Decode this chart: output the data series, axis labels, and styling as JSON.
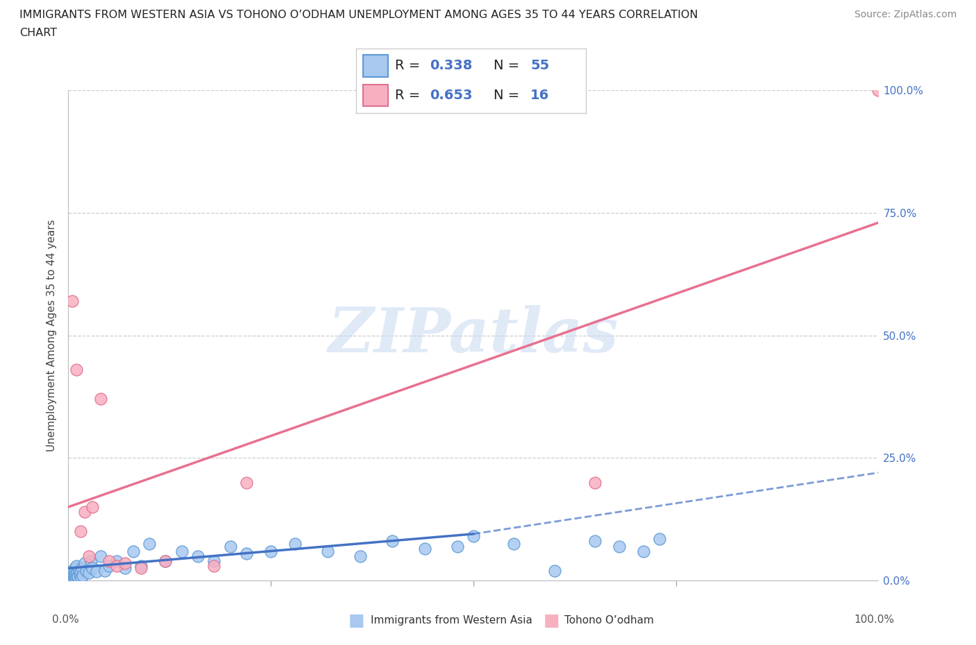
{
  "title_line1": "IMMIGRANTS FROM WESTERN ASIA VS TOHONO O’ODHAM UNEMPLOYMENT AMONG AGES 35 TO 44 YEARS CORRELATION",
  "title_line2": "CHART",
  "source": "Source: ZipAtlas.com",
  "ylabel": "Unemployment Among Ages 35 to 44 years",
  "blue_R": 0.338,
  "blue_N": 55,
  "pink_R": 0.653,
  "pink_N": 16,
  "blue_color": "#A8C8F0",
  "pink_color": "#F8B0C0",
  "blue_edge_color": "#5B9BD5",
  "pink_edge_color": "#E07090",
  "blue_line_color": "#4472C4",
  "pink_line_color": "#E87090",
  "legend_label_blue": "Immigrants from Western Asia",
  "legend_label_pink": "Tohono O’odham",
  "watermark": "ZIPatlas",
  "ytick_values": [
    0,
    25,
    50,
    75,
    100
  ],
  "xlim": [
    0,
    100
  ],
  "ylim": [
    0,
    100
  ],
  "blue_x": [
    0.2,
    0.3,
    0.4,
    0.5,
    0.5,
    0.6,
    0.7,
    0.7,
    0.8,
    0.8,
    0.9,
    1.0,
    1.0,
    1.1,
    1.2,
    1.3,
    1.4,
    1.5,
    1.6,
    1.7,
    1.8,
    2.0,
    2.2,
    2.5,
    2.8,
    3.0,
    3.5,
    4.0,
    4.5,
    5.0,
    6.0,
    7.0,
    8.0,
    9.0,
    10.0,
    12.0,
    14.0,
    16.0,
    18.0,
    20.0,
    22.0,
    25.0,
    28.0,
    32.0,
    36.0,
    40.0,
    44.0,
    48.0,
    50.0,
    55.0,
    60.0,
    65.0,
    68.0,
    71.0,
    73.0
  ],
  "blue_y": [
    1.0,
    0.5,
    1.5,
    2.0,
    0.5,
    1.0,
    1.5,
    0.8,
    2.5,
    1.2,
    0.5,
    3.0,
    1.0,
    1.5,
    0.8,
    2.0,
    1.2,
    1.8,
    0.6,
    2.5,
    1.0,
    3.5,
    2.0,
    1.5,
    4.0,
    2.5,
    1.8,
    5.0,
    2.0,
    3.0,
    4.0,
    2.5,
    6.0,
    3.0,
    7.5,
    4.0,
    6.0,
    5.0,
    4.0,
    7.0,
    5.5,
    6.0,
    7.5,
    6.0,
    5.0,
    8.0,
    6.5,
    7.0,
    9.0,
    7.5,
    2.0,
    8.0,
    7.0,
    6.0,
    8.5
  ],
  "pink_x": [
    0.5,
    1.0,
    1.5,
    2.0,
    2.5,
    3.0,
    4.0,
    5.0,
    6.0,
    7.0,
    9.0,
    12.0,
    18.0,
    22.0,
    65.0,
    100.0
  ],
  "pink_y": [
    57.0,
    43.0,
    10.0,
    14.0,
    5.0,
    15.0,
    37.0,
    4.0,
    3.0,
    3.5,
    2.5,
    4.0,
    3.0,
    20.0,
    20.0,
    100.0
  ],
  "blue_trend_solid": [
    0,
    50,
    2.5,
    9.5
  ],
  "blue_trend_dashed": [
    50,
    100,
    9.5,
    22.0
  ],
  "pink_trend": [
    0,
    100,
    15.0,
    73.0
  ],
  "grid_color": "#CCCCCC",
  "title_fontsize": 12,
  "stat_fontsize": 14,
  "tick_color_blue": "#4472C4",
  "source_color": "#888888"
}
